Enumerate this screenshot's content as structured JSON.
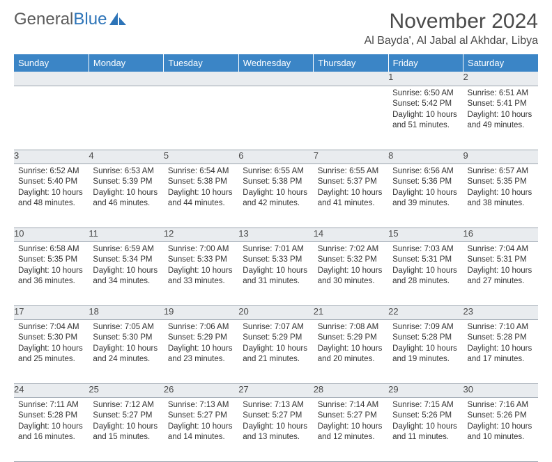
{
  "brand": {
    "part1": "General",
    "part2": "Blue"
  },
  "title": "November 2024",
  "location": "Al Bayda', Al Jabal al Akhdar, Libya",
  "colors": {
    "header_bg": "#3b85c6",
    "header_text": "#ffffff",
    "daybar_bg": "#e9ecef",
    "border": "#9aa4ae",
    "text": "#333333",
    "brand_gray": "#5a5a5a",
    "brand_blue": "#2d74b8"
  },
  "daysOfWeek": [
    "Sunday",
    "Monday",
    "Tuesday",
    "Wednesday",
    "Thursday",
    "Friday",
    "Saturday"
  ],
  "weeks": [
    [
      null,
      null,
      null,
      null,
      null,
      {
        "n": "1",
        "sr": "6:50 AM",
        "ss": "5:42 PM",
        "dl": "10 hours and 51 minutes."
      },
      {
        "n": "2",
        "sr": "6:51 AM",
        "ss": "5:41 PM",
        "dl": "10 hours and 49 minutes."
      }
    ],
    [
      {
        "n": "3",
        "sr": "6:52 AM",
        "ss": "5:40 PM",
        "dl": "10 hours and 48 minutes."
      },
      {
        "n": "4",
        "sr": "6:53 AM",
        "ss": "5:39 PM",
        "dl": "10 hours and 46 minutes."
      },
      {
        "n": "5",
        "sr": "6:54 AM",
        "ss": "5:38 PM",
        "dl": "10 hours and 44 minutes."
      },
      {
        "n": "6",
        "sr": "6:55 AM",
        "ss": "5:38 PM",
        "dl": "10 hours and 42 minutes."
      },
      {
        "n": "7",
        "sr": "6:55 AM",
        "ss": "5:37 PM",
        "dl": "10 hours and 41 minutes."
      },
      {
        "n": "8",
        "sr": "6:56 AM",
        "ss": "5:36 PM",
        "dl": "10 hours and 39 minutes."
      },
      {
        "n": "9",
        "sr": "6:57 AM",
        "ss": "5:35 PM",
        "dl": "10 hours and 38 minutes."
      }
    ],
    [
      {
        "n": "10",
        "sr": "6:58 AM",
        "ss": "5:35 PM",
        "dl": "10 hours and 36 minutes."
      },
      {
        "n": "11",
        "sr": "6:59 AM",
        "ss": "5:34 PM",
        "dl": "10 hours and 34 minutes."
      },
      {
        "n": "12",
        "sr": "7:00 AM",
        "ss": "5:33 PM",
        "dl": "10 hours and 33 minutes."
      },
      {
        "n": "13",
        "sr": "7:01 AM",
        "ss": "5:33 PM",
        "dl": "10 hours and 31 minutes."
      },
      {
        "n": "14",
        "sr": "7:02 AM",
        "ss": "5:32 PM",
        "dl": "10 hours and 30 minutes."
      },
      {
        "n": "15",
        "sr": "7:03 AM",
        "ss": "5:31 PM",
        "dl": "10 hours and 28 minutes."
      },
      {
        "n": "16",
        "sr": "7:04 AM",
        "ss": "5:31 PM",
        "dl": "10 hours and 27 minutes."
      }
    ],
    [
      {
        "n": "17",
        "sr": "7:04 AM",
        "ss": "5:30 PM",
        "dl": "10 hours and 25 minutes."
      },
      {
        "n": "18",
        "sr": "7:05 AM",
        "ss": "5:30 PM",
        "dl": "10 hours and 24 minutes."
      },
      {
        "n": "19",
        "sr": "7:06 AM",
        "ss": "5:29 PM",
        "dl": "10 hours and 23 minutes."
      },
      {
        "n": "20",
        "sr": "7:07 AM",
        "ss": "5:29 PM",
        "dl": "10 hours and 21 minutes."
      },
      {
        "n": "21",
        "sr": "7:08 AM",
        "ss": "5:29 PM",
        "dl": "10 hours and 20 minutes."
      },
      {
        "n": "22",
        "sr": "7:09 AM",
        "ss": "5:28 PM",
        "dl": "10 hours and 19 minutes."
      },
      {
        "n": "23",
        "sr": "7:10 AM",
        "ss": "5:28 PM",
        "dl": "10 hours and 17 minutes."
      }
    ],
    [
      {
        "n": "24",
        "sr": "7:11 AM",
        "ss": "5:28 PM",
        "dl": "10 hours and 16 minutes."
      },
      {
        "n": "25",
        "sr": "7:12 AM",
        "ss": "5:27 PM",
        "dl": "10 hours and 15 minutes."
      },
      {
        "n": "26",
        "sr": "7:13 AM",
        "ss": "5:27 PM",
        "dl": "10 hours and 14 minutes."
      },
      {
        "n": "27",
        "sr": "7:13 AM",
        "ss": "5:27 PM",
        "dl": "10 hours and 13 minutes."
      },
      {
        "n": "28",
        "sr": "7:14 AM",
        "ss": "5:27 PM",
        "dl": "10 hours and 12 minutes."
      },
      {
        "n": "29",
        "sr": "7:15 AM",
        "ss": "5:26 PM",
        "dl": "10 hours and 11 minutes."
      },
      {
        "n": "30",
        "sr": "7:16 AM",
        "ss": "5:26 PM",
        "dl": "10 hours and 10 minutes."
      }
    ]
  ],
  "labels": {
    "sunrise": "Sunrise:",
    "sunset": "Sunset:",
    "daylight": "Daylight:"
  }
}
